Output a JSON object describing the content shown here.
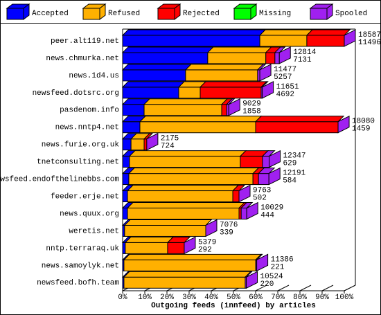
{
  "chart_data": {
    "type": "bar3d",
    "xlabel": "Outgoing feeds (innfeed) by articles",
    "categories": [
      "peer.alt119.net",
      "news.chmurka.net",
      "news.1d4.us",
      "newsfeed.dotsrc.org",
      "pasdenom.info",
      "news.nntp4.net",
      "news.furie.org.uk",
      "tnetconsulting.net",
      "newsfeed.endofthelinebbs.com",
      "feeder.erje.net",
      "news.quux.org",
      "weretis.net",
      "nntp.terraraq.uk",
      "news.samoylyk.net",
      "newsfeed.bofh.team"
    ],
    "series": [
      {
        "name": "Accepted",
        "color": "#0000ff",
        "values": [
          61.9,
          38.4,
          28.4,
          25.3,
          9.7,
          7.8,
          3.8,
          3.1,
          2.8,
          2.2,
          2.2,
          0.9,
          1.2,
          0.6,
          0.6
        ]
      },
      {
        "name": "Refused",
        "color": "#ffb000",
        "values": [
          21.2,
          26.2,
          32.5,
          9.7,
          35,
          52.2,
          5.9,
          50,
          56,
          47.5,
          50.3,
          36.6,
          19.1,
          59.4,
          54.7
        ]
      },
      {
        "name": "Rejected",
        "color": "#ff0000",
        "values": [
          16.9,
          4.1,
          0,
          27.5,
          2.2,
          37.2,
          1.2,
          10,
          2.5,
          2.8,
          1,
          0,
          7.5,
          0,
          0
        ]
      },
      {
        "name": "Missing",
        "color": "#00ff00",
        "values": [
          0,
          0,
          0,
          0,
          0,
          0,
          0,
          0,
          0,
          0,
          0,
          0,
          0,
          0,
          0
        ]
      },
      {
        "name": "Spooled",
        "color": "#a020f0",
        "values": [
          0,
          2,
          1,
          0.5,
          1,
          0,
          0,
          3,
          4.7,
          0,
          2.5,
          0,
          0,
          0.5,
          0.5
        ]
      }
    ],
    "bar_labels": [
      [
        18587,
        11496
      ],
      [
        12814,
        7131
      ],
      [
        11477,
        5257
      ],
      [
        11651,
        4692
      ],
      [
        9029,
        1858
      ],
      [
        18080,
        1459
      ],
      [
        2175,
        724
      ],
      [
        12347,
        629
      ],
      [
        12191,
        584
      ],
      [
        9763,
        502
      ],
      [
        10029,
        444
      ],
      [
        7076,
        339
      ],
      [
        5379,
        292
      ],
      [
        11386,
        221
      ],
      [
        10524,
        220
      ]
    ],
    "xlim": [
      0,
      100
    ],
    "xticks": [
      {
        "value": 0,
        "label": "0%"
      },
      {
        "value": 10,
        "label": "10%"
      },
      {
        "value": 20,
        "label": "20%"
      },
      {
        "value": 30,
        "label": "30%"
      },
      {
        "value": 40,
        "label": "40%"
      },
      {
        "value": 50,
        "label": "50%"
      },
      {
        "value": 60,
        "label": "60%"
      },
      {
        "value": 70,
        "label": "70%"
      },
      {
        "value": 80,
        "label": "80%"
      },
      {
        "value": 90,
        "label": "90%"
      },
      {
        "value": 100,
        "label": "100%"
      }
    ]
  }
}
